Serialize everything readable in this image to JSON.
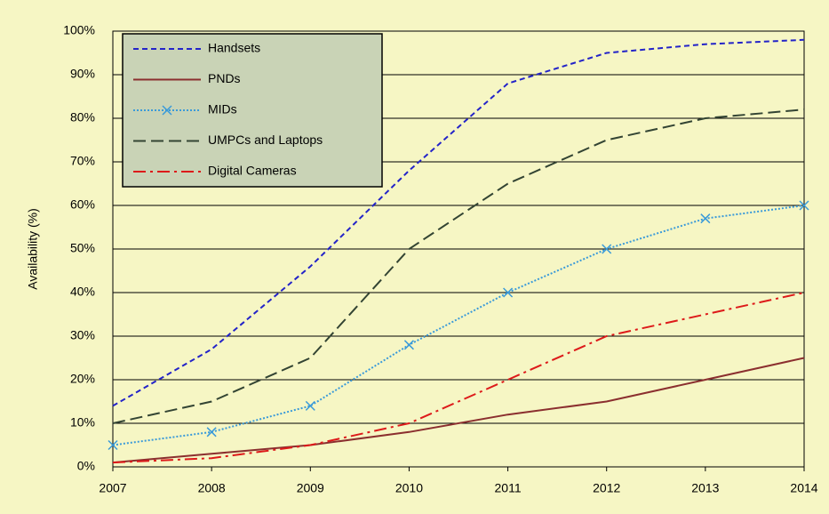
{
  "chart_data": {
    "type": "line",
    "y_label": "Availability (%)",
    "categories": [
      "2007",
      "2008",
      "2009",
      "2010",
      "2011",
      "2012",
      "2013",
      "2014"
    ],
    "series": [
      {
        "name": "Handsets",
        "color": "#2323c8",
        "style": "dashed",
        "values": [
          14,
          27,
          46,
          68,
          88,
          95,
          97,
          98
        ]
      },
      {
        "name": "PNDs",
        "color": "#8b2f2f",
        "style": "solid",
        "values": [
          1,
          3,
          5,
          8,
          12,
          15,
          20,
          25
        ]
      },
      {
        "name": "MIDs",
        "color": "#3a9ad9",
        "style": "dotted",
        "marker": "x",
        "values": [
          5,
          8,
          14,
          28,
          40,
          50,
          57,
          60
        ]
      },
      {
        "name": "UMPCs and Laptops",
        "color": "#334433",
        "style": "longdash",
        "values": [
          10,
          15,
          25,
          50,
          65,
          75,
          80,
          82
        ]
      },
      {
        "name": "Digital Cameras",
        "color": "#dd1a1a",
        "style": "dashdot",
        "values": [
          1,
          2,
          5,
          10,
          20,
          30,
          35,
          40
        ]
      }
    ],
    "ylim": [
      0,
      100
    ],
    "yticks": [
      {
        "value": 0,
        "label": "0%"
      },
      {
        "value": 10,
        "label": "10%"
      },
      {
        "value": 20,
        "label": "20%"
      },
      {
        "value": 30,
        "label": "30%"
      },
      {
        "value": 40,
        "label": "40%"
      },
      {
        "value": 50,
        "label": "50%"
      },
      {
        "value": 60,
        "label": "60%"
      },
      {
        "value": 70,
        "label": "70%"
      },
      {
        "value": 80,
        "label": "80%"
      },
      {
        "value": 90,
        "label": "90%"
      },
      {
        "value": 100,
        "label": "100%"
      }
    ],
    "grid": true,
    "legend": "upper left"
  }
}
